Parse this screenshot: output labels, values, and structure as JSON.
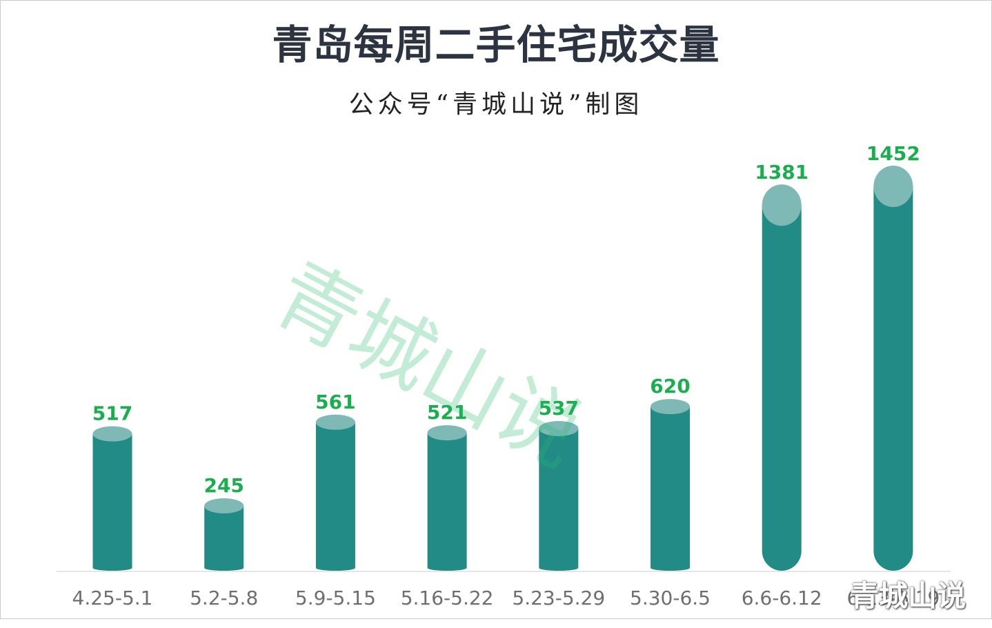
{
  "title": "青岛每周二手住宅成交量",
  "subtitle": "公众号“青城山说”制图",
  "watermark": "青城山说",
  "corner_watermark": "青城山说",
  "colors": {
    "bar_body": "#228b85",
    "bar_cap": "#7fb9b6",
    "data_label": "#1aae4e",
    "axis_text": "#6e6e6e",
    "baseline": "#e6e6e6"
  },
  "chart_data": {
    "type": "bar",
    "title": "青岛每周二手住宅成交量",
    "subtitle": "公众号“青城山说”制图",
    "categories": [
      "4.25-5.1",
      "5.2-5.8",
      "5.9-5.15",
      "5.16-5.22",
      "5.23-5.29",
      "5.30-6.5",
      "6.6-6.12",
      "6.13-6.19"
    ],
    "values": [
      517,
      245,
      561,
      521,
      537,
      620,
      1381,
      1452
    ],
    "ylim": [
      0,
      1452
    ],
    "grid": false,
    "legend": "none",
    "data_labels": true,
    "bar_style": "cylinder"
  }
}
